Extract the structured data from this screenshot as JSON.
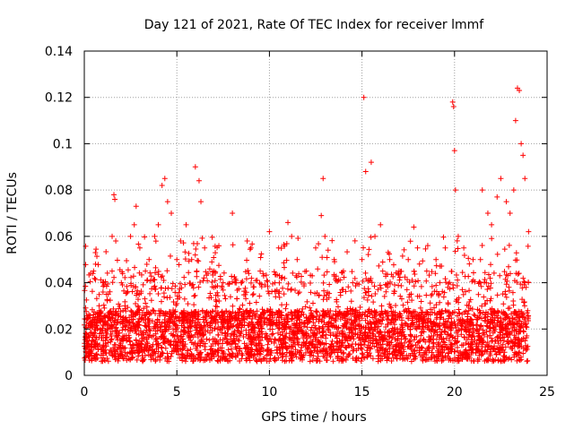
{
  "chart_data": {
    "type": "scatter",
    "title": "Day 121 of 2021, Rate Of TEC Index for receiver lmmf",
    "xlabel": "GPS time / hours",
    "ylabel": "ROTI / TECUs",
    "xlim": [
      0,
      25
    ],
    "ylim": [
      0,
      0.14
    ],
    "xticks": [
      0,
      5,
      10,
      15,
      20,
      25
    ],
    "yticks": [
      0,
      0.02,
      0.04,
      0.06,
      0.08,
      0.1,
      0.12,
      0.14
    ],
    "xtick_labels": [
      "0",
      "5",
      "10",
      "15",
      "20",
      "25"
    ],
    "ytick_labels": [
      "0",
      "0.02",
      "0.04",
      "0.06",
      "0.08",
      "0.1",
      "0.12",
      "0.14"
    ],
    "grid": true,
    "marker": "+",
    "marker_color": "#ff0000",
    "data_x_range": [
      0,
      24
    ],
    "series": [
      {
        "name": "ROTI",
        "points": [
          [
            0.1,
            0.018
          ],
          [
            0.3,
            0.025
          ],
          [
            0.5,
            0.045
          ],
          [
            0.6,
            0.053
          ],
          [
            0.8,
            0.03
          ],
          [
            1.0,
            0.04
          ],
          [
            1.2,
            0.035
          ],
          [
            1.5,
            0.045
          ],
          [
            1.6,
            0.078
          ],
          [
            1.65,
            0.076
          ],
          [
            1.7,
            0.058
          ],
          [
            2.0,
            0.04
          ],
          [
            2.2,
            0.03
          ],
          [
            2.5,
            0.06
          ],
          [
            2.7,
            0.065
          ],
          [
            2.8,
            0.073
          ],
          [
            3.0,
            0.055
          ],
          [
            3.3,
            0.045
          ],
          [
            3.5,
            0.05
          ],
          [
            3.8,
            0.06
          ],
          [
            4.0,
            0.065
          ],
          [
            4.2,
            0.082
          ],
          [
            4.35,
            0.085
          ],
          [
            4.5,
            0.075
          ],
          [
            4.7,
            0.07
          ],
          [
            5.0,
            0.05
          ],
          [
            5.2,
            0.058
          ],
          [
            5.5,
            0.065
          ],
          [
            5.8,
            0.05
          ],
          [
            6.0,
            0.09
          ],
          [
            6.2,
            0.084
          ],
          [
            6.3,
            0.075
          ],
          [
            6.5,
            0.055
          ],
          [
            7.0,
            0.045
          ],
          [
            7.5,
            0.04
          ],
          [
            8.0,
            0.07
          ],
          [
            8.5,
            0.04
          ],
          [
            8.8,
            0.058
          ],
          [
            9.0,
            0.055
          ],
          [
            9.5,
            0.045
          ],
          [
            10.0,
            0.062
          ],
          [
            10.3,
            0.04
          ],
          [
            10.5,
            0.055
          ],
          [
            11.0,
            0.066
          ],
          [
            11.2,
            0.06
          ],
          [
            11.5,
            0.05
          ],
          [
            12.0,
            0.045
          ],
          [
            12.5,
            0.055
          ],
          [
            12.8,
            0.069
          ],
          [
            12.9,
            0.085
          ],
          [
            13.0,
            0.06
          ],
          [
            13.5,
            0.05
          ],
          [
            14.0,
            0.045
          ],
          [
            14.5,
            0.04
          ],
          [
            15.0,
            0.05
          ],
          [
            15.1,
            0.12
          ],
          [
            15.2,
            0.088
          ],
          [
            15.5,
            0.092
          ],
          [
            15.7,
            0.06
          ],
          [
            16.0,
            0.065
          ],
          [
            16.5,
            0.05
          ],
          [
            17.0,
            0.045
          ],
          [
            17.5,
            0.05
          ],
          [
            17.8,
            0.064
          ],
          [
            18.0,
            0.055
          ],
          [
            18.5,
            0.045
          ],
          [
            19.0,
            0.05
          ],
          [
            19.5,
            0.055
          ],
          [
            19.9,
            0.118
          ],
          [
            19.95,
            0.116
          ],
          [
            20.0,
            0.097
          ],
          [
            20.05,
            0.08
          ],
          [
            20.2,
            0.06
          ],
          [
            20.5,
            0.055
          ],
          [
            21.0,
            0.05
          ],
          [
            21.5,
            0.08
          ],
          [
            21.8,
            0.07
          ],
          [
            22.0,
            0.065
          ],
          [
            22.3,
            0.077
          ],
          [
            22.5,
            0.085
          ],
          [
            22.8,
            0.075
          ],
          [
            23.0,
            0.07
          ],
          [
            23.2,
            0.08
          ],
          [
            23.3,
            0.11
          ],
          [
            23.4,
            0.124
          ],
          [
            23.5,
            0.123
          ],
          [
            23.6,
            0.1
          ],
          [
            23.7,
            0.095
          ],
          [
            23.8,
            0.085
          ],
          [
            24.0,
            0.062
          ]
        ]
      }
    ]
  }
}
